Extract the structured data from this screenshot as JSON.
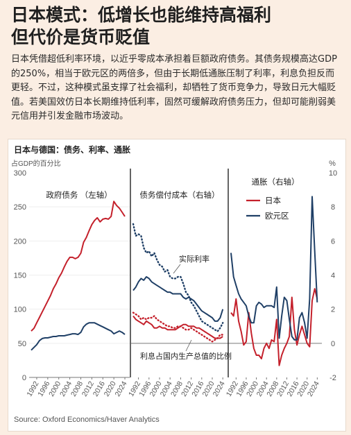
{
  "headline": {
    "line1": "日本模式：低增长也能维持高福利",
    "line2": "但代价是货币贬值"
  },
  "intro": "日本凭借超低利率环境，以近乎零成本承担着巨额政府债务。其债务规模高达GDP的250%，相当于欧元区的两倍多，但由于长期低通胀压制了利率，利息负担反而更轻。不过，这种模式虽支撑了社会福利，却牺牲了货币竞争力，导致日元大幅贬值。若美国效仿日本长期维持低利率，固然可缓解政府债务压力，但却可能削弱美元信用并引发金融市场波动。",
  "chart_title": "日本与德国：债务、利率、通胀",
  "source": "Source: Oxford Economics/Haver Analytics",
  "colors": {
    "japan": "#c4202b",
    "eurozone": "#1f3f66",
    "background": "#fbeee3"
  },
  "chart_data": [
    {
      "type": "line",
      "panel_title": "政府债务 （左轴）",
      "ylabel": "占GDP的百分比",
      "ylim": [
        0,
        300
      ],
      "yticks": [
        0,
        50,
        100,
        150,
        200,
        250,
        300
      ],
      "xticks": [
        "1992",
        "1996",
        "2000",
        "2004",
        "2008",
        "2012",
        "2016",
        "2020",
        "2024"
      ],
      "x": [
        1990,
        1991,
        1992,
        1993,
        1994,
        1995,
        1996,
        1997,
        1998,
        1999,
        2000,
        2001,
        2002,
        2003,
        2004,
        2005,
        2006,
        2007,
        2008,
        2009,
        2010,
        2011,
        2012,
        2013,
        2014,
        2015,
        2016,
        2017,
        2018,
        2019,
        2020,
        2021,
        2022,
        2023,
        2024
      ],
      "series": [
        {
          "values": [
            68,
            72,
            80,
            88,
            96,
            104,
            112,
            120,
            130,
            137,
            146,
            153,
            162,
            170,
            176,
            176,
            174,
            176,
            182,
            198,
            205,
            215,
            224,
            230,
            234,
            228,
            232,
            233,
            232,
            236,
            258,
            252,
            248,
            242,
            236
          ]
        },
        {
          "values": [
            40,
            44,
            48,
            54,
            57,
            58,
            58,
            59,
            60,
            60,
            61,
            61,
            61,
            62,
            63,
            64,
            64,
            63,
            66,
            74,
            78,
            80,
            80,
            80,
            78,
            76,
            74,
            72,
            70,
            68,
            64,
            66,
            68,
            66,
            63
          ]
        }
      ]
    },
    {
      "type": "line",
      "panel_title": "债务偿付成本（右轴）",
      "ylim": [
        -2,
        10
      ],
      "xticks": [
        "1992",
        "1996",
        "2000",
        "2004",
        "2008",
        "2012",
        "2016",
        "2020",
        "2024"
      ],
      "annotations": [
        "实际利率",
        "利息占国内生产总值的比例"
      ],
      "x": [
        1990,
        1991,
        1992,
        1993,
        1994,
        1995,
        1996,
        1997,
        1998,
        1999,
        2000,
        2001,
        2002,
        2003,
        2004,
        2005,
        2006,
        2007,
        2008,
        2009,
        2010,
        2011,
        2012,
        2013,
        2014,
        2015,
        2016,
        2017,
        2018,
        2019,
        2020,
        2021,
        2022,
        2023,
        2024
      ],
      "series": [
        {
          "values": [
            1.6,
            1.4,
            1.3,
            1.2,
            1.1,
            1.3,
            1.2,
            1.1,
            0.9,
            0.9,
            1.0,
            0.9,
            0.9,
            0.8,
            0.8,
            0.8,
            0.8,
            0.9,
            1.0,
            1.1,
            1.1,
            1.0,
            1.0,
            1.0,
            0.9,
            0.9,
            0.8,
            0.7,
            0.6,
            0.5,
            0.4,
            0.3,
            0.3,
            0.3,
            0.4
          ]
        },
        {
          "values": [
            3.1,
            3.3,
            3.6,
            3.8,
            3.7,
            3.9,
            3.8,
            3.6,
            3.5,
            3.4,
            3.3,
            3.2,
            3.1,
            3.0,
            3.0,
            2.9,
            2.9,
            2.9,
            2.9,
            2.7,
            2.6,
            2.7,
            2.6,
            2.5,
            2.3,
            2.1,
            1.9,
            1.8,
            1.7,
            1.6,
            1.5,
            1.3,
            1.3,
            1.5,
            2.0
          ]
        },
        {
          "values": [
            7.0,
            6.3,
            6.4,
            6.3,
            5.6,
            5.3,
            5.4,
            5.1,
            5.3,
            4.9,
            4.6,
            4.5,
            4.2,
            4.3,
            3.9,
            3.8,
            3.8,
            3.9,
            3.9,
            3.5,
            3.0,
            2.8,
            2.4,
            2.2,
            1.9,
            1.6,
            1.3,
            1.2,
            1.1,
            1.0,
            0.9,
            0.8,
            0.7,
            0.9,
            1.2
          ]
        },
        {
          "values": [
            1.8,
            1.7,
            1.6,
            1.4,
            1.5,
            1.4,
            1.5,
            1.5,
            1.6,
            1.4,
            1.3,
            1.2,
            1.1,
            1.0,
            1.0,
            0.9,
            0.9,
            1.0,
            1.0,
            0.9,
            0.8,
            0.8,
            0.9,
            0.8,
            0.7,
            0.6,
            0.5,
            0.4,
            0.3,
            0.2,
            0.1,
            0.2,
            0.3,
            0.5,
            0.5
          ]
        }
      ]
    },
    {
      "type": "line",
      "panel_title": "通胀（右轴）",
      "ylim": [
        -2,
        10
      ],
      "yticks": [
        -2,
        0,
        2,
        4,
        6,
        8,
        10
      ],
      "yunit": "%",
      "xticks": [
        "1992",
        "1996",
        "2000",
        "2004",
        "2008",
        "2012",
        "2016",
        "2020",
        "2024"
      ],
      "legend": [
        "日本",
        "欧元区"
      ],
      "x": [
        1990,
        1991,
        1992,
        1993,
        1994,
        1995,
        1996,
        1997,
        1998,
        1999,
        2000,
        2001,
        2002,
        2003,
        2004,
        2005,
        2006,
        2007,
        2008,
        2009,
        2010,
        2011,
        2012,
        2013,
        2014,
        2015,
        2016,
        2017,
        2018,
        2019,
        2020,
        2021,
        2022,
        2023,
        2024
      ],
      "series": [
        {
          "name": "日本",
          "values": [
            1.8,
            1.6,
            2.6,
            1.3,
            0.7,
            -0.1,
            0.1,
            1.8,
            0.6,
            -0.3,
            -0.7,
            -0.7,
            -0.9,
            -0.3,
            0.0,
            -0.3,
            0.2,
            0.1,
            1.4,
            -1.3,
            -0.7,
            -0.3,
            0.0,
            0.4,
            2.7,
            0.8,
            -0.1,
            0.5,
            1.0,
            0.5,
            0.0,
            -0.2,
            2.5,
            3.2,
            2.6
          ]
        },
        {
          "name": "欧元区",
          "values": [
            5.3,
            3.9,
            3.4,
            2.9,
            2.6,
            2.4,
            2.2,
            1.6,
            1.2,
            1.2,
            2.2,
            2.4,
            2.3,
            2.1,
            2.2,
            2.2,
            2.2,
            2.1,
            3.3,
            0.3,
            1.6,
            2.7,
            2.5,
            1.4,
            0.4,
            0.2,
            0.2,
            1.5,
            1.8,
            1.2,
            0.3,
            2.6,
            8.6,
            5.4,
            2.4
          ]
        }
      ]
    }
  ]
}
